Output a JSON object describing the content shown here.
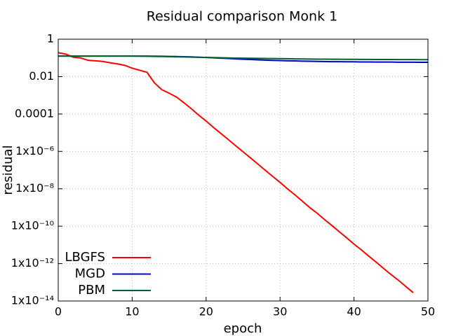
{
  "chart_data": {
    "type": "line",
    "title": "Residual comparison Monk 1",
    "xlabel": "epoch",
    "ylabel": "residual",
    "x": [
      0,
      1,
      2,
      3,
      4,
      5,
      6,
      7,
      8,
      9,
      10,
      11,
      12,
      13,
      14,
      15,
      16,
      17,
      18,
      19,
      20,
      21,
      22,
      23,
      24,
      25,
      26,
      27,
      28,
      29,
      30,
      31,
      32,
      33,
      34,
      35,
      36,
      37,
      38,
      39,
      40,
      41,
      42,
      43,
      44,
      45,
      46,
      47,
      48,
      49,
      50
    ],
    "series": [
      {
        "name": "LBGFS",
        "color": "#ff0000",
        "values": [
          0.19,
          0.16,
          0.11,
          0.1,
          0.075,
          0.07,
          0.065,
          0.055,
          0.048,
          0.04,
          0.028,
          0.022,
          0.017,
          0.0047,
          0.002,
          0.0013,
          0.0008,
          0.0004,
          0.00019,
          8.7e-05,
          4.2e-05,
          1.9e-05,
          9.1e-06,
          4.3e-06,
          2e-06,
          9.5e-07,
          4.5e-07,
          2.1e-07,
          9.8e-08,
          4.6e-08,
          2.2e-08,
          1e-08,
          4.8e-09,
          2.2e-09,
          1e-09,
          5e-10,
          2.3e-10,
          1.1e-10,
          5.1e-11,
          2.4e-11,
          1.1e-11,
          5.4e-12,
          2.5e-12,
          1.2e-12,
          5.5e-13,
          2.6e-13,
          1.3e-13,
          6e-14,
          2.8e-14,
          null,
          null
        ]
      },
      {
        "name": "MGD",
        "color": "#0000cc",
        "values": [
          0.125,
          0.125,
          0.125,
          0.125,
          0.125,
          0.125,
          0.125,
          0.125,
          0.125,
          0.125,
          0.125,
          0.125,
          0.125,
          0.124,
          0.122,
          0.12,
          0.118,
          0.116,
          0.113,
          0.109,
          0.105,
          0.101,
          0.097,
          0.093,
          0.089,
          0.085,
          0.082,
          0.079,
          0.076,
          0.074,
          0.072,
          0.07,
          0.069,
          0.067,
          0.066,
          0.065,
          0.064,
          0.063,
          0.063,
          0.062,
          0.062,
          0.061,
          0.061,
          0.06,
          0.06,
          0.06,
          0.059,
          0.059,
          0.059,
          0.058,
          0.058
        ]
      },
      {
        "name": "PBM",
        "color": "#006030",
        "values": [
          0.125,
          0.125,
          0.125,
          0.125,
          0.125,
          0.125,
          0.125,
          0.125,
          0.125,
          0.125,
          0.125,
          0.124,
          0.122,
          0.12,
          0.118,
          0.116,
          0.114,
          0.112,
          0.11,
          0.108,
          0.106,
          0.104,
          0.102,
          0.1,
          0.098,
          0.097,
          0.095,
          0.094,
          0.093,
          0.092,
          0.091,
          0.09,
          0.089,
          0.088,
          0.087,
          0.086,
          0.086,
          0.085,
          0.085,
          0.084,
          0.084,
          0.083,
          0.083,
          0.082,
          0.082,
          0.082,
          0.081,
          0.081,
          0.081,
          0.08,
          0.08
        ]
      }
    ],
    "xlim": [
      0,
      50
    ],
    "xticks": [
      0,
      10,
      20,
      30,
      40,
      50
    ],
    "ylim": [
      1e-14,
      1
    ],
    "log_y": true,
    "yticks": [
      1,
      0.01,
      0.0001,
      {
        "value": 1e-06,
        "label": "1x10⁻⁶"
      },
      {
        "value": 1e-08,
        "label": "1x10⁻⁸"
      },
      {
        "value": 1e-10,
        "label": "1x10⁻¹⁰"
      },
      {
        "value": 1e-12,
        "label": "1x10⁻¹²"
      },
      {
        "value": 1e-14,
        "label": "1x10⁻¹⁴"
      }
    ],
    "grid": true,
    "legend": "lower left"
  }
}
